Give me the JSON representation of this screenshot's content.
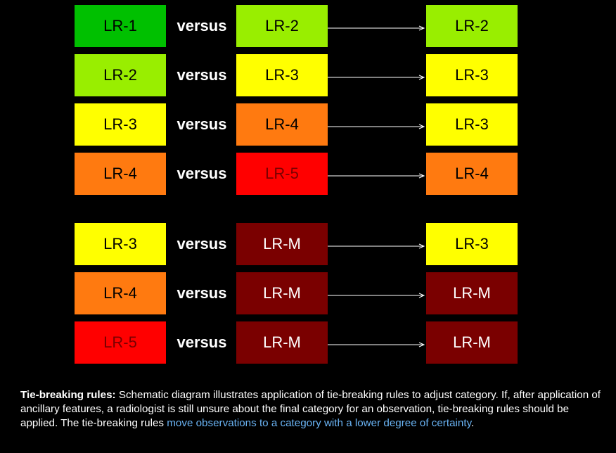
{
  "versus_label": "versus",
  "colors": {
    "LR-1": {
      "bg": "#00c000",
      "fg": "#000000"
    },
    "LR-2": {
      "bg": "#99ee00",
      "fg": "#000000"
    },
    "LR-3": {
      "bg": "#ffff00",
      "fg": "#000000"
    },
    "LR-4": {
      "bg": "#ff7a10",
      "fg": "#000000"
    },
    "LR-5": {
      "bg": "#ff0000",
      "fg": "#7a0000"
    },
    "LR-M": {
      "bg": "#7a0000",
      "fg": "#ffffff"
    }
  },
  "rows": [
    {
      "left": "LR-1",
      "right": "LR-2",
      "result": "LR-2"
    },
    {
      "left": "LR-2",
      "right": "LR-3",
      "result": "LR-3"
    },
    {
      "left": "LR-3",
      "right": "LR-4",
      "result": "LR-3"
    },
    {
      "left": "LR-4",
      "right": "LR-5",
      "result": "LR-4"
    },
    {
      "left": "LR-3",
      "right": "LR-M",
      "result": "LR-3"
    },
    {
      "left": "LR-4",
      "right": "LR-M",
      "result": "LR-M"
    },
    {
      "left": "LR-5",
      "right": "LR-M",
      "result": "LR-M"
    }
  ],
  "caption": {
    "lead": "Tie-breaking rules:",
    "body": " Schematic diagram illustrates application of tie-breaking rules to adjust category. If, after application of ancillary features, a radiologist is still unsure about the final category for an observation, tie-breaking rules should be applied. The tie-breaking rules ",
    "highlight": "move observations to a category with a lower degree of certainty",
    "end": "."
  }
}
